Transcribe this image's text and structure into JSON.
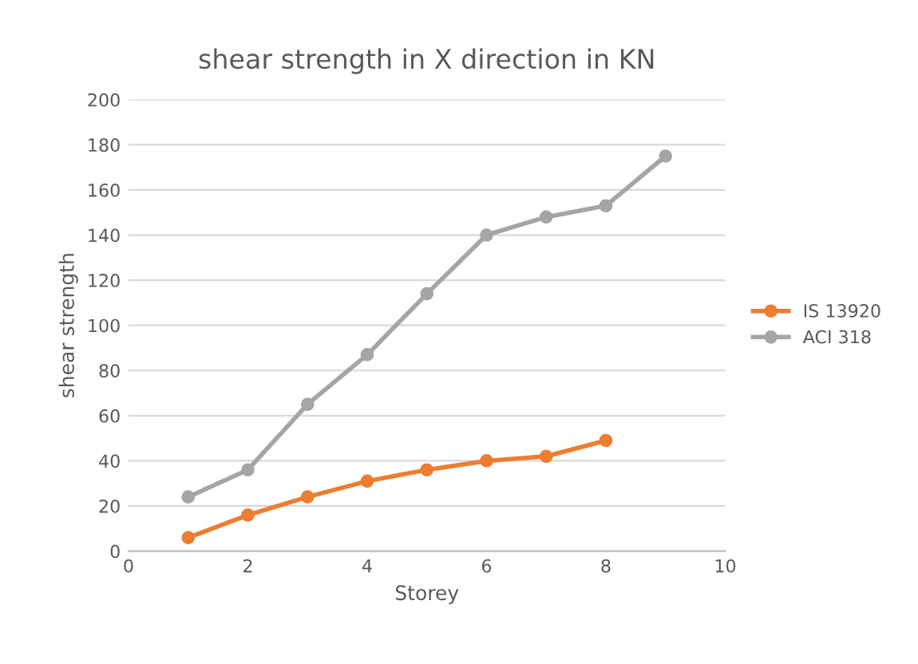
{
  "chart_data": {
    "type": "line",
    "title": "shear strength in X direction in KN",
    "xlabel": "Storey",
    "ylabel": "shear strength",
    "series": [
      {
        "name": "IS 13920",
        "color": "#ed7d31",
        "x": [
          1,
          2,
          3,
          4,
          5,
          6,
          7,
          8
        ],
        "values": [
          6,
          16,
          24,
          31,
          36,
          40,
          42,
          49
        ]
      },
      {
        "name": "ACI 318",
        "color": "#a5a5a5",
        "x": [
          1,
          2,
          3,
          4,
          5,
          6,
          7,
          8,
          9
        ],
        "values": [
          24,
          36,
          65,
          87,
          114,
          140,
          148,
          153,
          175
        ]
      }
    ],
    "xlim": [
      0,
      10
    ],
    "xticks": [
      0,
      2,
      4,
      6,
      8,
      10
    ],
    "ylim": [
      0,
      200
    ],
    "yticks": [
      0,
      20,
      40,
      60,
      80,
      100,
      120,
      140,
      160,
      180,
      200
    ],
    "grid": "y",
    "legend": "right",
    "marker": "circle",
    "line_style": "solid"
  }
}
